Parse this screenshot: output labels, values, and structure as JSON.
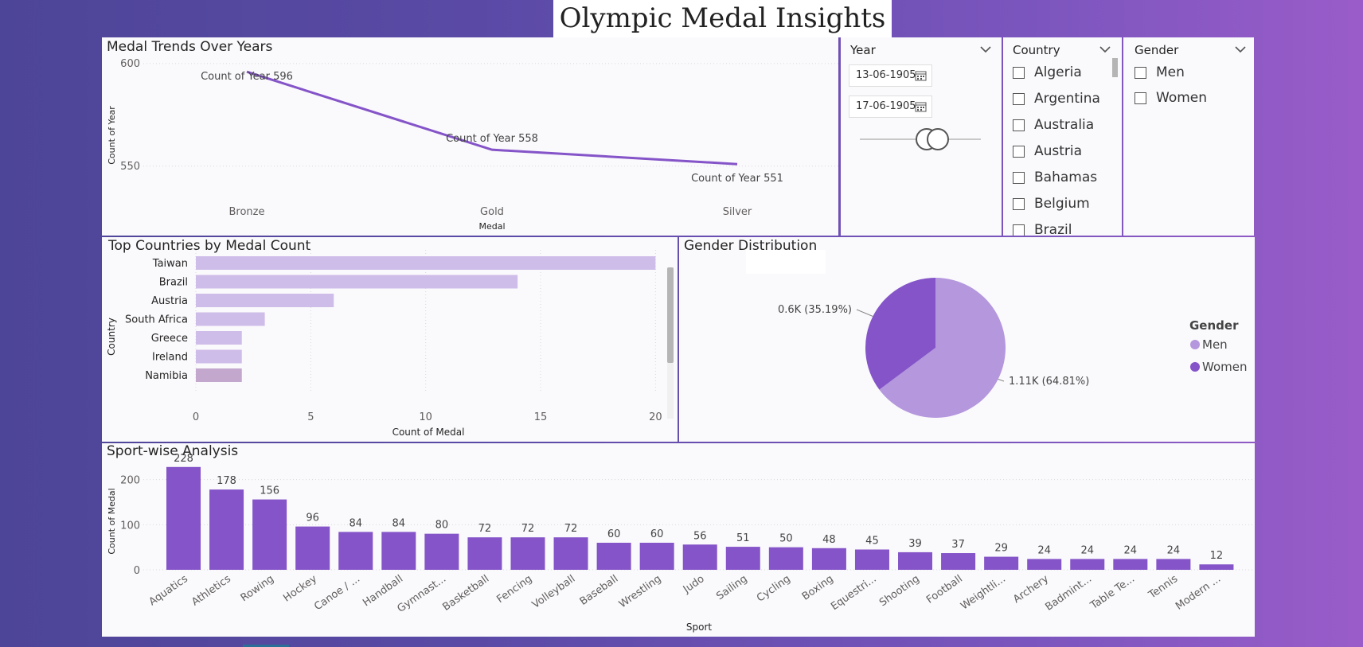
{
  "title": "Olympic Medal Insights",
  "colors": {
    "line": "#8454c8",
    "bar_light": "#cfbde9",
    "bar_selected": "#c3a7cc",
    "bar_dark": "#8454c8",
    "pie_men": "#b497dd",
    "pie_women": "#8454c8"
  },
  "trend": {
    "title": "Medal Trends Over Years",
    "chart_data": {
      "type": "line",
      "categories": [
        "Bronze",
        "Gold",
        "Silver"
      ],
      "series": [
        {
          "values": [
            596,
            558,
            551
          ]
        }
      ],
      "data_labels": [
        "Count of Year 596",
        "Count of Year 558",
        "Count of Year 551"
      ],
      "xlabel": "Medal",
      "ylabel": "Count of Year",
      "yticks": [
        600,
        550
      ],
      "ylim": [
        541,
        605
      ],
      "grid": true
    }
  },
  "slicers": {
    "year": {
      "title": "Year",
      "start": "13-06-1905",
      "end": "17-06-1905"
    },
    "country": {
      "title": "Country",
      "items": [
        "Algeria",
        "Argentina",
        "Australia",
        "Austria",
        "Bahamas",
        "Belgium",
        "Brazil"
      ]
    },
    "gender": {
      "title": "Gender",
      "items": [
        "Men",
        "Women"
      ]
    }
  },
  "countries": {
    "title": "Top Countries by Medal Count",
    "chart_data": {
      "type": "bar",
      "orientation": "horizontal",
      "categories": [
        "Taiwan",
        "Brazil",
        "Austria",
        "South Africa",
        "Greece",
        "Ireland",
        "Namibia"
      ],
      "values": [
        20,
        14,
        6,
        3,
        2,
        2,
        2
      ],
      "xlabel": "Count of Medal",
      "ylabel": "Country",
      "xticks": [
        0,
        5,
        10,
        15,
        20
      ],
      "xlim": [
        0,
        20.3
      ],
      "grid": true
    }
  },
  "gender": {
    "title": "Gender Distribution",
    "chart_data": {
      "type": "pie",
      "categories": [
        "Men",
        "Women"
      ],
      "values": [
        64.81,
        35.19
      ],
      "data_labels": [
        "1.11K (64.81%)",
        "0.6K (35.19%)"
      ],
      "legend_title": "Gender",
      "legend": "right"
    }
  },
  "sport": {
    "title": "Sport-wise Analysis",
    "chart_data": {
      "type": "bar",
      "categories": [
        "Aquatics",
        "Athletics",
        "Rowing",
        "Hockey",
        "Canoe / ...",
        "Handball",
        "Gymnast...",
        "Basketball",
        "Fencing",
        "Volleyball",
        "Baseball",
        "Wrestling",
        "Judo",
        "Sailing",
        "Cycling",
        "Boxing",
        "Equestri...",
        "Shooting",
        "Football",
        "Weightli...",
        "Archery",
        "Badmint...",
        "Table Te...",
        "Tennis",
        "Modern ..."
      ],
      "values": [
        228,
        178,
        156,
        96,
        84,
        84,
        80,
        72,
        72,
        72,
        60,
        60,
        56,
        51,
        50,
        48,
        45,
        39,
        37,
        29,
        24,
        24,
        24,
        24,
        12
      ],
      "xlabel": "Sport",
      "ylabel": "Count of Medal",
      "yticks": [
        0,
        100,
        200
      ],
      "ylim": [
        0,
        240
      ],
      "grid": true
    }
  }
}
